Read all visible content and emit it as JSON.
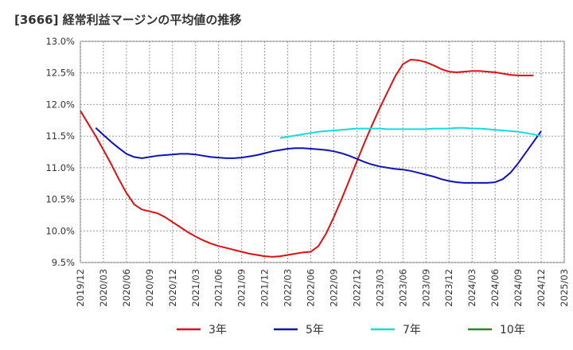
{
  "chart_data": {
    "type": "line",
    "title": "[3666]  経常利益マージンの平均値の推移",
    "xlabel": "",
    "ylabel": "",
    "ylim": [
      9.5,
      13.0
    ],
    "y_ticks": [
      "13.0%",
      "12.5%",
      "12.0%",
      "11.5%",
      "11.0%",
      "10.5%",
      "10.0%",
      "9.5%"
    ],
    "x_ticks": [
      "2019/12",
      "2020/03",
      "2020/06",
      "2020/09",
      "2020/12",
      "2021/03",
      "2021/06",
      "2021/09",
      "2021/12",
      "2022/03",
      "2022/06",
      "2022/09",
      "2022/12",
      "2023/03",
      "2023/06",
      "2023/09",
      "2023/12",
      "2024/03",
      "2024/06",
      "2024/09",
      "2024/12",
      "2025/03"
    ],
    "grid": true,
    "legend_position": "bottom",
    "series": [
      {
        "name": "3年",
        "color": "#dd1111",
        "points": [
          [
            "2019/12",
            11.9
          ],
          [
            "2020/01",
            11.7
          ],
          [
            "2020/02",
            11.5
          ],
          [
            "2020/03",
            11.28
          ],
          [
            "2020/04",
            11.06
          ],
          [
            "2020/05",
            10.82
          ],
          [
            "2020/06",
            10.6
          ],
          [
            "2020/07",
            10.42
          ],
          [
            "2020/08",
            10.34
          ],
          [
            "2020/09",
            10.31
          ],
          [
            "2020/10",
            10.28
          ],
          [
            "2020/11",
            10.22
          ],
          [
            "2020/12",
            10.14
          ],
          [
            "2021/01",
            10.06
          ],
          [
            "2021/02",
            9.98
          ],
          [
            "2021/03",
            9.91
          ],
          [
            "2021/04",
            9.85
          ],
          [
            "2021/05",
            9.8
          ],
          [
            "2021/06",
            9.76
          ],
          [
            "2021/07",
            9.73
          ],
          [
            "2021/08",
            9.7
          ],
          [
            "2021/09",
            9.67
          ],
          [
            "2021/10",
            9.64
          ],
          [
            "2021/11",
            9.62
          ],
          [
            "2021/12",
            9.6
          ],
          [
            "2022/01",
            9.59
          ],
          [
            "2022/02",
            9.6
          ],
          [
            "2022/03",
            9.62
          ],
          [
            "2022/04",
            9.64
          ],
          [
            "2022/05",
            9.66
          ],
          [
            "2022/06",
            9.67
          ],
          [
            "2022/07",
            9.76
          ],
          [
            "2022/08",
            9.96
          ],
          [
            "2022/09",
            10.22
          ],
          [
            "2022/10",
            10.5
          ],
          [
            "2022/11",
            10.8
          ],
          [
            "2022/12",
            11.1
          ],
          [
            "2023/01",
            11.4
          ],
          [
            "2023/02",
            11.68
          ],
          [
            "2023/03",
            11.95
          ],
          [
            "2023/04",
            12.2
          ],
          [
            "2023/05",
            12.45
          ],
          [
            "2023/06",
            12.64
          ],
          [
            "2023/07",
            12.71
          ],
          [
            "2023/08",
            12.7
          ],
          [
            "2023/09",
            12.67
          ],
          [
            "2023/10",
            12.62
          ],
          [
            "2023/11",
            12.56
          ],
          [
            "2023/12",
            12.52
          ],
          [
            "2024/01",
            12.51
          ],
          [
            "2024/02",
            12.52
          ],
          [
            "2024/03",
            12.53
          ],
          [
            "2024/04",
            12.53
          ],
          [
            "2024/05",
            12.52
          ],
          [
            "2024/06",
            12.51
          ],
          [
            "2024/07",
            12.49
          ],
          [
            "2024/08",
            12.47
          ],
          [
            "2024/09",
            12.46
          ],
          [
            "2024/10",
            12.46
          ],
          [
            "2024/11",
            12.46
          ]
        ]
      },
      {
        "name": "5年",
        "color": "#1111bb",
        "points": [
          [
            "2020/02",
            11.63
          ],
          [
            "2020/03",
            11.52
          ],
          [
            "2020/04",
            11.41
          ],
          [
            "2020/05",
            11.31
          ],
          [
            "2020/06",
            11.22
          ],
          [
            "2020/07",
            11.17
          ],
          [
            "2020/08",
            11.15
          ],
          [
            "2020/09",
            11.17
          ],
          [
            "2020/10",
            11.19
          ],
          [
            "2020/11",
            11.2
          ],
          [
            "2020/12",
            11.21
          ],
          [
            "2021/01",
            11.22
          ],
          [
            "2021/02",
            11.22
          ],
          [
            "2021/03",
            11.21
          ],
          [
            "2021/04",
            11.19
          ],
          [
            "2021/05",
            11.17
          ],
          [
            "2021/06",
            11.16
          ],
          [
            "2021/07",
            11.15
          ],
          [
            "2021/08",
            11.15
          ],
          [
            "2021/09",
            11.16
          ],
          [
            "2021/10",
            11.18
          ],
          [
            "2021/11",
            11.2
          ],
          [
            "2021/12",
            11.23
          ],
          [
            "2022/01",
            11.26
          ],
          [
            "2022/02",
            11.28
          ],
          [
            "2022/03",
            11.3
          ],
          [
            "2022/04",
            11.31
          ],
          [
            "2022/05",
            11.31
          ],
          [
            "2022/06",
            11.3
          ],
          [
            "2022/07",
            11.29
          ],
          [
            "2022/08",
            11.28
          ],
          [
            "2022/09",
            11.26
          ],
          [
            "2022/10",
            11.23
          ],
          [
            "2022/11",
            11.19
          ],
          [
            "2022/12",
            11.14
          ],
          [
            "2023/01",
            11.09
          ],
          [
            "2023/02",
            11.05
          ],
          [
            "2023/03",
            11.02
          ],
          [
            "2023/04",
            11.0
          ],
          [
            "2023/05",
            10.98
          ],
          [
            "2023/06",
            10.97
          ],
          [
            "2023/07",
            10.95
          ],
          [
            "2023/08",
            10.92
          ],
          [
            "2023/09",
            10.89
          ],
          [
            "2023/10",
            10.86
          ],
          [
            "2023/11",
            10.82
          ],
          [
            "2023/12",
            10.79
          ],
          [
            "2024/01",
            10.77
          ],
          [
            "2024/02",
            10.76
          ],
          [
            "2024/03",
            10.76
          ],
          [
            "2024/04",
            10.76
          ],
          [
            "2024/05",
            10.76
          ],
          [
            "2024/06",
            10.77
          ],
          [
            "2024/07",
            10.82
          ],
          [
            "2024/08",
            10.92
          ],
          [
            "2024/09",
            11.07
          ],
          [
            "2024/10",
            11.24
          ],
          [
            "2024/11",
            11.41
          ],
          [
            "2024/12",
            11.58
          ]
        ]
      },
      {
        "name": "7年",
        "color": "#11dddd",
        "points": [
          [
            "2022/02",
            11.47
          ],
          [
            "2022/03",
            11.49
          ],
          [
            "2022/04",
            11.51
          ],
          [
            "2022/05",
            11.53
          ],
          [
            "2022/06",
            11.55
          ],
          [
            "2022/07",
            11.57
          ],
          [
            "2022/08",
            11.58
          ],
          [
            "2022/09",
            11.59
          ],
          [
            "2022/10",
            11.6
          ],
          [
            "2022/11",
            11.61
          ],
          [
            "2022/12",
            11.62
          ],
          [
            "2023/01",
            11.62
          ],
          [
            "2023/02",
            11.62
          ],
          [
            "2023/03",
            11.62
          ],
          [
            "2023/04",
            11.61
          ],
          [
            "2023/05",
            11.61
          ],
          [
            "2023/06",
            11.61
          ],
          [
            "2023/07",
            11.61
          ],
          [
            "2023/08",
            11.61
          ],
          [
            "2023/09",
            11.61
          ],
          [
            "2023/10",
            11.62
          ],
          [
            "2023/11",
            11.62
          ],
          [
            "2023/12",
            11.62
          ],
          [
            "2024/01",
            11.63
          ],
          [
            "2024/02",
            11.63
          ],
          [
            "2024/03",
            11.62
          ],
          [
            "2024/04",
            11.62
          ],
          [
            "2024/05",
            11.61
          ],
          [
            "2024/06",
            11.6
          ],
          [
            "2024/07",
            11.59
          ],
          [
            "2024/08",
            11.58
          ],
          [
            "2024/09",
            11.57
          ],
          [
            "2024/10",
            11.55
          ],
          [
            "2024/11",
            11.53
          ],
          [
            "2024/12",
            11.5
          ]
        ]
      },
      {
        "name": "10年",
        "color": "#228822",
        "points": []
      }
    ]
  }
}
